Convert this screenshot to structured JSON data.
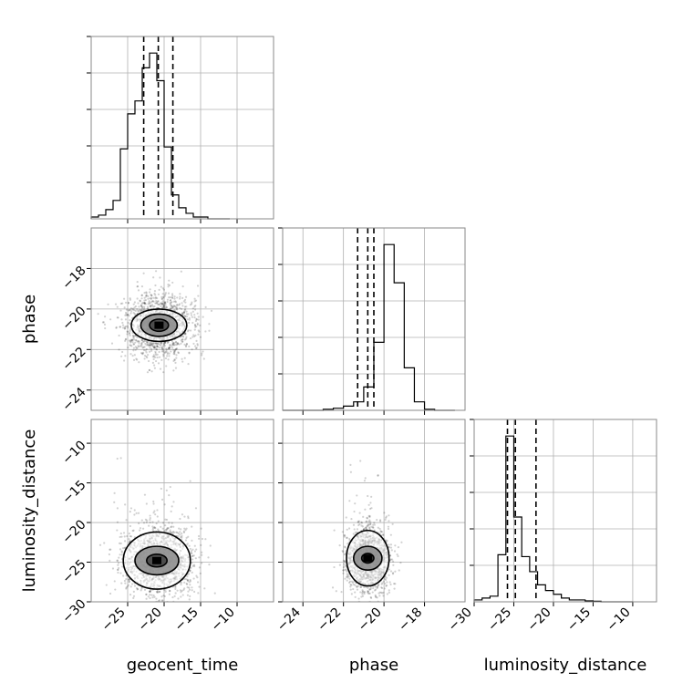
{
  "chart_data": {
    "type": "corner",
    "parameters": [
      "geocent_time",
      "phase",
      "luminosity_distance"
    ],
    "ticks": {
      "geocent_time": [
        -25,
        -20,
        -15,
        -10
      ],
      "phase": [
        -24,
        -22,
        -20,
        -18
      ],
      "luminosity_distance": [
        -30,
        -25,
        -20,
        -15,
        -10
      ]
    },
    "ranges": {
      "geocent_time": [
        -30,
        -5
      ],
      "phase": [
        -25,
        -16
      ],
      "luminosity_distance": [
        -30,
        -7
      ]
    },
    "histograms": [
      {
        "param": "geocent_time",
        "edges": [
          -30,
          -29,
          -28,
          -27,
          -26,
          -25,
          -24,
          -23,
          -22,
          -21,
          -20,
          -19,
          -18,
          -17,
          -16,
          -15,
          -14,
          -13,
          -12,
          -11
        ],
        "counts": [
          1,
          2,
          5,
          10,
          38,
          57,
          64,
          82,
          90,
          75,
          39,
          13,
          6,
          3,
          1,
          1,
          0,
          0,
          0
        ],
        "quantiles": [
          -22.8,
          -20.8,
          -18.8
        ]
      },
      {
        "param": "phase",
        "edges": [
          -25,
          -24.5,
          -24,
          -23.5,
          -23,
          -22.5,
          -22,
          -21.5,
          -21,
          -20.5,
          -20,
          -19.5,
          -19,
          -18.5,
          -18,
          -17.5,
          -17,
          -16.5
        ],
        "counts": [
          0,
          0,
          0,
          0,
          0.5,
          1,
          2,
          4,
          11,
          32,
          78,
          60,
          20,
          4,
          0.5,
          0,
          0
        ],
        "quantiles": [
          -21.3,
          -20.8,
          -20.5
        ]
      },
      {
        "param": "luminosity_distance",
        "edges": [
          -30,
          -29,
          -28,
          -27,
          -26,
          -25,
          -24,
          -23,
          -22,
          -21,
          -20,
          -19,
          -18,
          -17,
          -16,
          -15,
          -14,
          -13,
          -12,
          -11,
          -10
        ],
        "counts": [
          1,
          2,
          3,
          25,
          88,
          45,
          24,
          16,
          9,
          6,
          4,
          2,
          1,
          1,
          0.5,
          0.3,
          0,
          0,
          0,
          0
        ],
        "quantiles": [
          -25.8,
          -24.8,
          -22.2
        ]
      }
    ],
    "scatter_panels": [
      {
        "x": "geocent_time",
        "y": "phase",
        "center": [
          -20.7,
          -20.8
        ],
        "spread": [
          2.4,
          0.8
        ],
        "contours": [
          {
            "level": "inner",
            "rx": 1.3,
            "ry": 0.3
          },
          {
            "level": "middle",
            "rx": 2.5,
            "ry": 0.55
          },
          {
            "level": "outer",
            "rx": 3.8,
            "ry": 0.8
          }
        ]
      },
      {
        "x": "geocent_time",
        "y": "luminosity_distance",
        "center": [
          -21.0,
          -24.8
        ],
        "spread": [
          2.6,
          2.2
        ],
        "contours": [
          {
            "level": "inner",
            "rx": 1.4,
            "ry": 0.8
          },
          {
            "level": "middle",
            "rx": 3.0,
            "ry": 1.8
          },
          {
            "level": "outer",
            "rx": 4.6,
            "ry": 3.6
          }
        ]
      },
      {
        "x": "phase",
        "y": "luminosity_distance",
        "center": [
          -20.8,
          -24.5
        ],
        "spread": [
          0.55,
          2.1
        ],
        "contours": [
          {
            "level": "inner",
            "rx": 0.3,
            "ry": 0.6
          },
          {
            "level": "middle",
            "rx": 0.7,
            "ry": 1.5
          },
          {
            "level": "outer",
            "rx": 1.05,
            "ry": 3.5
          }
        ]
      }
    ],
    "grid": true
  }
}
